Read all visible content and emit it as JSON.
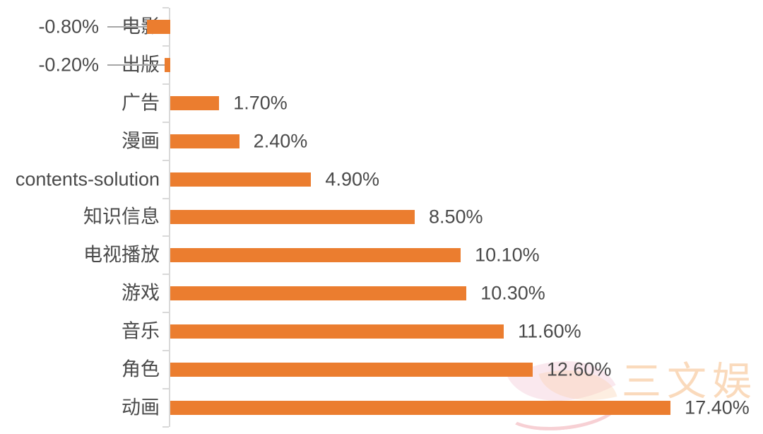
{
  "chart_data": {
    "type": "bar",
    "orientation": "horizontal",
    "title": "",
    "xlabel": "",
    "ylabel": "",
    "categories": [
      "电影",
      "出版",
      "广告",
      "漫画",
      "contents-solution",
      "知识信息",
      "电视播放",
      "游戏",
      "音乐",
      "角色",
      "动画"
    ],
    "values": [
      -0.8,
      -0.2,
      1.7,
      2.4,
      4.9,
      8.5,
      10.1,
      10.3,
      11.6,
      12.6,
      17.4
    ],
    "value_labels": [
      "-0.80%",
      "-0.20%",
      "1.70%",
      "2.40%",
      "4.90%",
      "8.50%",
      "10.10%",
      "10.30%",
      "11.60%",
      "12.60%",
      "17.40%"
    ],
    "unit": "%",
    "xlim": [
      -1,
      18
    ],
    "grid": false,
    "legend": "none",
    "bar_color": "#EB7D2F",
    "axis_color": "#D9D9D9",
    "label_color": "#4A4A4A",
    "leader_line_color": "#A6A6A6"
  },
  "watermark": {
    "text": "三文娱",
    "text_color": "#F3A660",
    "logo": "leaf-swoosh-logo"
  }
}
